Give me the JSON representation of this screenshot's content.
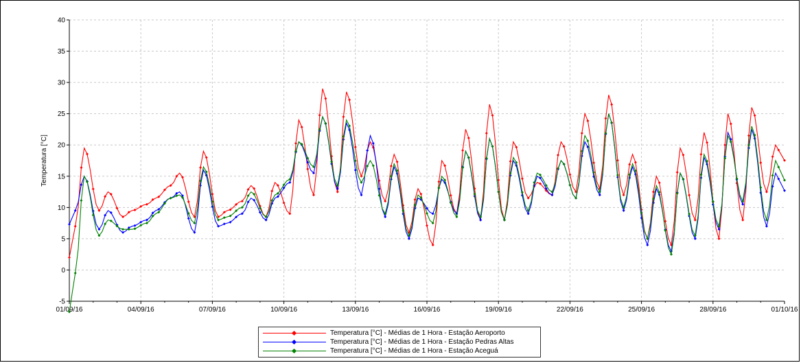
{
  "chart_data": {
    "type": "line",
    "title": "",
    "xlabel": "",
    "ylabel": "Temperatura [°C]",
    "ylim": [
      -5,
      40
    ],
    "yticks": [
      -5,
      0,
      5,
      10,
      15,
      20,
      25,
      30,
      35,
      40
    ],
    "xlim": [
      "2016-09-01",
      "2016-10-01"
    ],
    "xticks": [
      "01/09/16",
      "04/09/16",
      "07/09/16",
      "10/09/16",
      "13/09/16",
      "16/09/16",
      "19/09/16",
      "22/09/16",
      "25/09/16",
      "28/09/16",
      "01/10/16"
    ],
    "grid": true,
    "legend_position": "bottom-center",
    "sampling": "1 hour",
    "series": [
      {
        "name": "Temperatura [°C] - Médias de 1 Hora - Estação Aeroporto",
        "color": "#ff0000",
        "daily_min": [
          7.0,
          9.5,
          8.5,
          10.5,
          13.5,
          8.5,
          8.5,
          11.0,
          8.5,
          9.0,
          12.0,
          12.5,
          15.0,
          11.0,
          6.0,
          4.0,
          9.0,
          8.0,
          8.0,
          11.5,
          12.0,
          12.5,
          13.0,
          12.0,
          5.0,
          4.0,
          8.0,
          5.0,
          8.0,
          12.5
        ],
        "daily_max": [
          19.5,
          12.5,
          9.5,
          11.5,
          15.5,
          19.0,
          9.5,
          13.5,
          14.0,
          24.0,
          29.0,
          28.5,
          20.5,
          18.5,
          13.0,
          17.5,
          22.5,
          26.5,
          20.5,
          14.0,
          20.5,
          25.0,
          28.0,
          18.5,
          15.0,
          19.5,
          22.0,
          25.0,
          26.0,
          20.0
        ]
      },
      {
        "name": "Temperatura [°C] - Médias de 1 Hora - Estação Pedras Altas",
        "color": "#0000ff",
        "daily_min": [
          9.5,
          6.5,
          6.0,
          8.0,
          11.5,
          6.0,
          7.0,
          9.0,
          8.0,
          14.0,
          15.5,
          13.0,
          12.0,
          8.5,
          5.0,
          9.0,
          9.0,
          8.0,
          8.0,
          9.0,
          12.0,
          11.5,
          12.0,
          9.5,
          4.0,
          3.0,
          5.0,
          6.5,
          10.5,
          7.0
        ],
        "daily_max": [
          15.0,
          9.5,
          7.0,
          9.5,
          12.5,
          16.0,
          7.5,
          11.5,
          11.5,
          20.5,
          24.5,
          23.5,
          21.5,
          16.5,
          11.5,
          14.5,
          19.0,
          21.0,
          17.5,
          15.0,
          17.5,
          20.5,
          25.0,
          16.5,
          13.0,
          15.5,
          18.0,
          22.0,
          22.5,
          15.5
        ]
      },
      {
        "name": "Temperatura [°C] - Médias de 1 Hora - Estação Aceguá",
        "color": "#008000",
        "daily_min": [
          -0.5,
          5.5,
          6.5,
          7.5,
          11.5,
          7.5,
          8.0,
          10.0,
          8.5,
          14.5,
          16.5,
          13.5,
          14.0,
          9.0,
          5.5,
          7.5,
          8.5,
          8.5,
          8.0,
          9.5,
          12.5,
          11.5,
          12.5,
          10.0,
          5.0,
          2.5,
          5.5,
          7.0,
          11.0,
          8.0
        ],
        "daily_max": [
          15.0,
          8.0,
          6.5,
          9.0,
          12.0,
          16.5,
          8.5,
          12.5,
          12.0,
          20.5,
          24.5,
          24.0,
          17.5,
          17.0,
          12.0,
          15.0,
          19.0,
          21.0,
          18.0,
          15.5,
          17.5,
          21.5,
          25.0,
          17.0,
          13.5,
          15.5,
          18.5,
          21.5,
          23.0,
          17.5
        ]
      }
    ]
  }
}
